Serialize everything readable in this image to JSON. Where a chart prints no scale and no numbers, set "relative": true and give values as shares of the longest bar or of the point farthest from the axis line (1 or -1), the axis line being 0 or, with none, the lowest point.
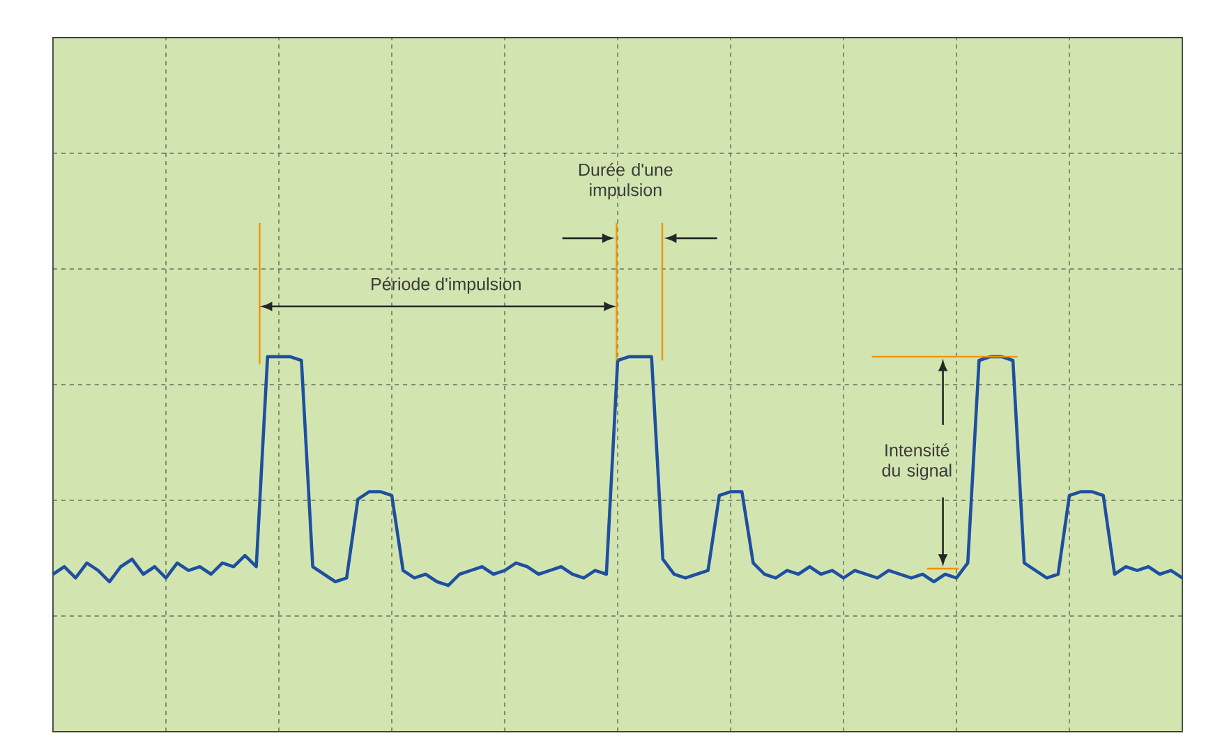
{
  "chart_data": {
    "type": "line",
    "relative": true,
    "grid": true,
    "color": "#1f4fa0",
    "categories": [
      null,
      null,
      null,
      null,
      null,
      null,
      null,
      null,
      null,
      null,
      null,
      null,
      null,
      null,
      null,
      null,
      null,
      null,
      null,
      null,
      null,
      null,
      null,
      null,
      null,
      null,
      null,
      null,
      null,
      null,
      null,
      null,
      null,
      null,
      null,
      null,
      null,
      null,
      null,
      null,
      null,
      null,
      null,
      null,
      null,
      null,
      null,
      null,
      null,
      null,
      null,
      null,
      null,
      null,
      null,
      null,
      null,
      null,
      null,
      null,
      null,
      null,
      null,
      null,
      null,
      null,
      null,
      null,
      null,
      null,
      null,
      null,
      null,
      null,
      null,
      null,
      null,
      null,
      null,
      null,
      null,
      null,
      null,
      null,
      null,
      null,
      null,
      null,
      null,
      null,
      null,
      null,
      null,
      null,
      null,
      null,
      null,
      null,
      null,
      null,
      null
    ],
    "values": [
      0.42,
      0.44,
      0.41,
      0.45,
      0.43,
      0.4,
      0.44,
      0.46,
      0.42,
      0.44,
      0.41,
      0.45,
      0.43,
      0.44,
      0.42,
      0.45,
      0.44,
      0.47,
      0.44,
      1.0,
      1.0,
      1.0,
      0.99,
      0.44,
      0.42,
      0.4,
      0.41,
      0.62,
      0.64,
      0.64,
      0.63,
      0.43,
      0.41,
      0.42,
      0.4,
      0.39,
      0.42,
      0.43,
      0.44,
      0.42,
      0.43,
      0.45,
      0.44,
      0.42,
      0.43,
      0.44,
      0.42,
      0.41,
      0.43,
      0.42,
      0.99,
      1.0,
      1.0,
      1.0,
      0.46,
      0.42,
      0.41,
      0.42,
      0.43,
      0.63,
      0.64,
      0.64,
      0.45,
      0.42,
      0.41,
      0.43,
      0.42,
      0.44,
      0.42,
      0.43,
      0.41,
      0.43,
      0.42,
      0.41,
      0.43,
      0.42,
      0.41,
      0.42,
      0.4,
      0.42,
      0.41,
      0.45,
      0.99,
      1.0,
      1.0,
      0.99,
      0.45,
      0.43,
      0.41,
      0.42,
      0.63,
      0.64,
      0.64,
      0.63,
      0.42,
      0.44,
      0.43,
      0.44,
      0.42,
      0.43,
      0.41
    ],
    "annotations": [
      "Période d'impulsion",
      "Durée d'une impulsion",
      "Intensité du signal"
    ]
  }
}
